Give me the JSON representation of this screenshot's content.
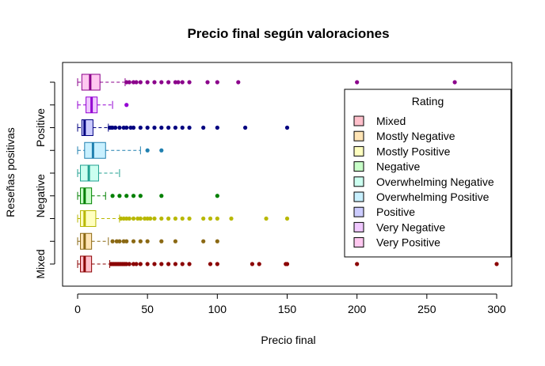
{
  "chart_data": {
    "type": "boxplot",
    "orientation": "horizontal",
    "title": "Precio final según valoraciones",
    "xlabel": "Precio final",
    "ylabel": "Reseñas positivas",
    "xlim": [
      -12,
      308
    ],
    "x_ticks": [
      0,
      50,
      100,
      150,
      200,
      250,
      300
    ],
    "y_tick_labels": [
      "Mixed",
      "Negative",
      "Positive"
    ],
    "grid": false,
    "legend": {
      "title": "Rating",
      "placement": "right",
      "entries": [
        {
          "label": "Mixed",
          "color": "#FFC0CB"
        },
        {
          "label": "Mostly Negative",
          "color": "#FFE4B5"
        },
        {
          "label": "Mostly Positive",
          "color": "#FFFFC0"
        },
        {
          "label": "Negative",
          "color": "#C8FFC8"
        },
        {
          "label": "Overwhelming Negative",
          "color": "#CCFFF0"
        },
        {
          "label": "Overwhelming Positive",
          "color": "#C8F0FF"
        },
        {
          "label": "Positive",
          "color": "#CCCCFF"
        },
        {
          "label": "Very Negative",
          "color": "#F0C8FF"
        },
        {
          "label": "Very Positive",
          "color": "#FFC8F0"
        }
      ]
    },
    "series": [
      {
        "name": "Mixed",
        "fill": "#FFC0CB",
        "stroke": "#8B0000",
        "whisker_low": 0,
        "q1": 2,
        "median": 5,
        "q3": 10,
        "whisker_high": 23,
        "outliers": [
          24,
          25,
          26,
          27,
          28,
          29,
          30,
          31,
          32,
          33,
          34,
          35,
          37,
          40,
          42,
          45,
          50,
          55,
          60,
          65,
          70,
          75,
          80,
          95,
          100,
          125,
          130,
          149,
          150,
          200,
          300
        ]
      },
      {
        "name": "Mostly Negative",
        "fill": "#FFE4B5",
        "stroke": "#8B6914",
        "whisker_low": 0,
        "q1": 2,
        "median": 5,
        "q3": 10,
        "whisker_high": 22,
        "outliers": [
          25,
          28,
          30,
          33,
          35,
          40,
          45,
          50,
          60,
          70,
          90,
          100
        ]
      },
      {
        "name": "Mostly Positive",
        "fill": "#FFFFC0",
        "stroke": "#B8B800",
        "whisker_low": 0,
        "q1": 2,
        "median": 5,
        "q3": 13,
        "whisker_high": 30,
        "outliers": [
          31,
          33,
          35,
          37,
          40,
          43,
          45,
          48,
          50,
          52,
          55,
          60,
          65,
          70,
          75,
          80,
          90,
          95,
          100,
          110,
          135,
          150
        ]
      },
      {
        "name": "Negative",
        "fill": "#C8FFC8",
        "stroke": "#008000",
        "whisker_low": 0,
        "q1": 2,
        "median": 5,
        "q3": 10,
        "whisker_high": 20,
        "outliers": [
          25,
          30,
          35,
          40,
          45,
          60,
          100
        ]
      },
      {
        "name": "Overwhelming Negative",
        "fill": "#CCFFF0",
        "stroke": "#20A090",
        "whisker_low": 0,
        "q1": 2,
        "median": 8,
        "q3": 15,
        "whisker_high": 30,
        "outliers": []
      },
      {
        "name": "Overwhelming Positive",
        "fill": "#C8F0FF",
        "stroke": "#2080B0",
        "whisker_low": 0,
        "q1": 5,
        "median": 11,
        "q3": 20,
        "whisker_high": 45,
        "outliers": [
          50,
          60
        ]
      },
      {
        "name": "Positive",
        "fill": "#CCCCFF",
        "stroke": "#000080",
        "whisker_low": 0,
        "q1": 3,
        "median": 5,
        "q3": 11,
        "whisker_high": 22,
        "outliers": [
          23,
          24,
          25,
          27,
          30,
          33,
          35,
          38,
          40,
          45,
          50,
          55,
          60,
          65,
          70,
          75,
          80,
          90,
          100,
          120,
          150
        ]
      },
      {
        "name": "Very Negative",
        "fill": "#F0C8FF",
        "stroke": "#9400D3",
        "whisker_low": 0,
        "q1": 6,
        "median": 10,
        "q3": 14,
        "whisker_high": 25,
        "outliers": [
          35
        ]
      },
      {
        "name": "Very Positive",
        "fill": "#FFC8F0",
        "stroke": "#8B008B",
        "whisker_low": 0,
        "q1": 3,
        "median": 9,
        "q3": 16,
        "whisker_high": 34,
        "outliers": [
          35,
          37,
          40,
          42,
          45,
          50,
          55,
          60,
          65,
          70,
          72,
          75,
          80,
          93,
          100,
          115,
          200,
          270
        ]
      }
    ]
  }
}
